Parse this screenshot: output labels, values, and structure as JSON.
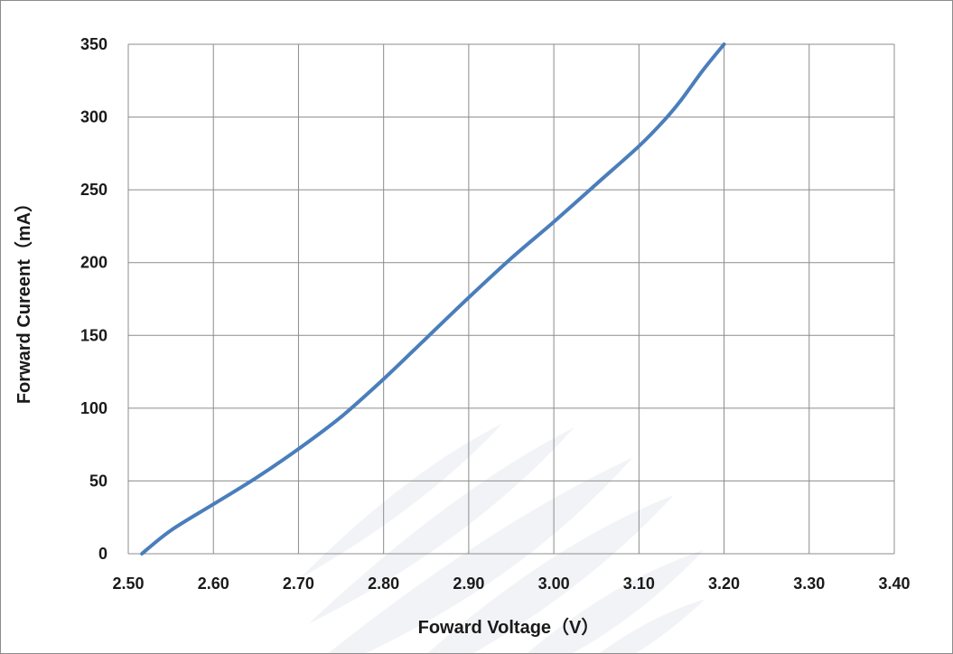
{
  "chart_data": {
    "type": "line",
    "xlabel": "Foward Voltage（V）",
    "ylabel": "Forward Cureent（mA）",
    "xlim": [
      2.5,
      3.4
    ],
    "ylim": [
      0,
      350
    ],
    "x_ticks": [
      "2.50",
      "2.60",
      "2.70",
      "2.80",
      "2.90",
      "3.00",
      "3.10",
      "3.20",
      "3.30",
      "3.40"
    ],
    "y_ticks": [
      "0",
      "50",
      "100",
      "150",
      "200",
      "250",
      "300",
      "350"
    ],
    "grid": true,
    "legend": "none",
    "series": [
      {
        "color": "#4a7ebb",
        "x": [
          2.516,
          2.55,
          2.6,
          2.65,
          2.7,
          2.75,
          2.8,
          2.85,
          2.9,
          2.95,
          3.0,
          3.05,
          3.1,
          3.13,
          3.15,
          3.175,
          3.2
        ],
        "y": [
          0,
          16,
          34,
          52,
          72,
          94,
          120,
          148,
          176,
          203,
          228,
          254,
          280,
          298,
          312,
          332,
          350
        ]
      }
    ]
  },
  "colors": {
    "line": "#4a7ebb",
    "grid": "#8c8c8c",
    "frame": "#8c8c8c"
  }
}
